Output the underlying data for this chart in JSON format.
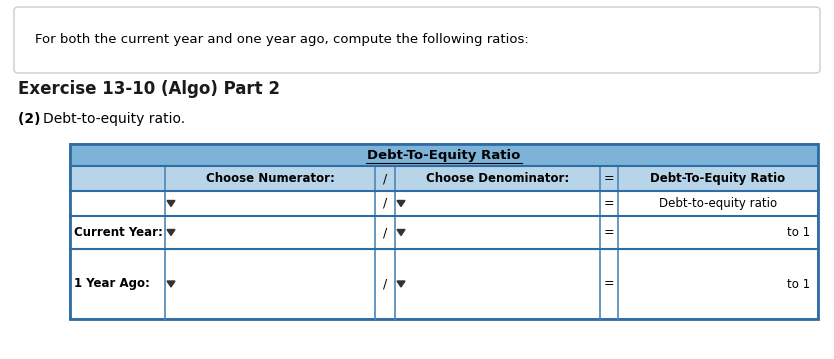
{
  "title_box_text": "For both the current year and one year ago, compute the following ratios:",
  "exercise_title": "Exercise 13-10 (Algo) Part 2",
  "part_label": "(2) Debt-to-equity ratio.",
  "table_header_center": "Debt-To-Equity Ratio",
  "col1_header": "Choose Numerator:",
  "col2_header": "/",
  "col3_header": "Choose Denominator:",
  "col4_header": "=",
  "col5_header": "Debt-To-Equity Ratio",
  "row0_col5": "Debt-to-equity ratio",
  "row1_label": "Current Year:",
  "row1_col5": "to 1",
  "row2_label": "1 Year Ago:",
  "row2_col5": "to 1",
  "slash": "/",
  "equals": "=",
  "header_bg": "#7db3d8",
  "subheader_bg": "#b8d4e8",
  "white_bg": "#ffffff",
  "border_color": "#4a86b8",
  "dark_border": "#2e6da4",
  "bg_color": "#ffffff",
  "top_box_bg": "#ffffff",
  "top_box_border": "#cccccc",
  "text_color": "#000000",
  "bold_color": "#1a1a1a"
}
